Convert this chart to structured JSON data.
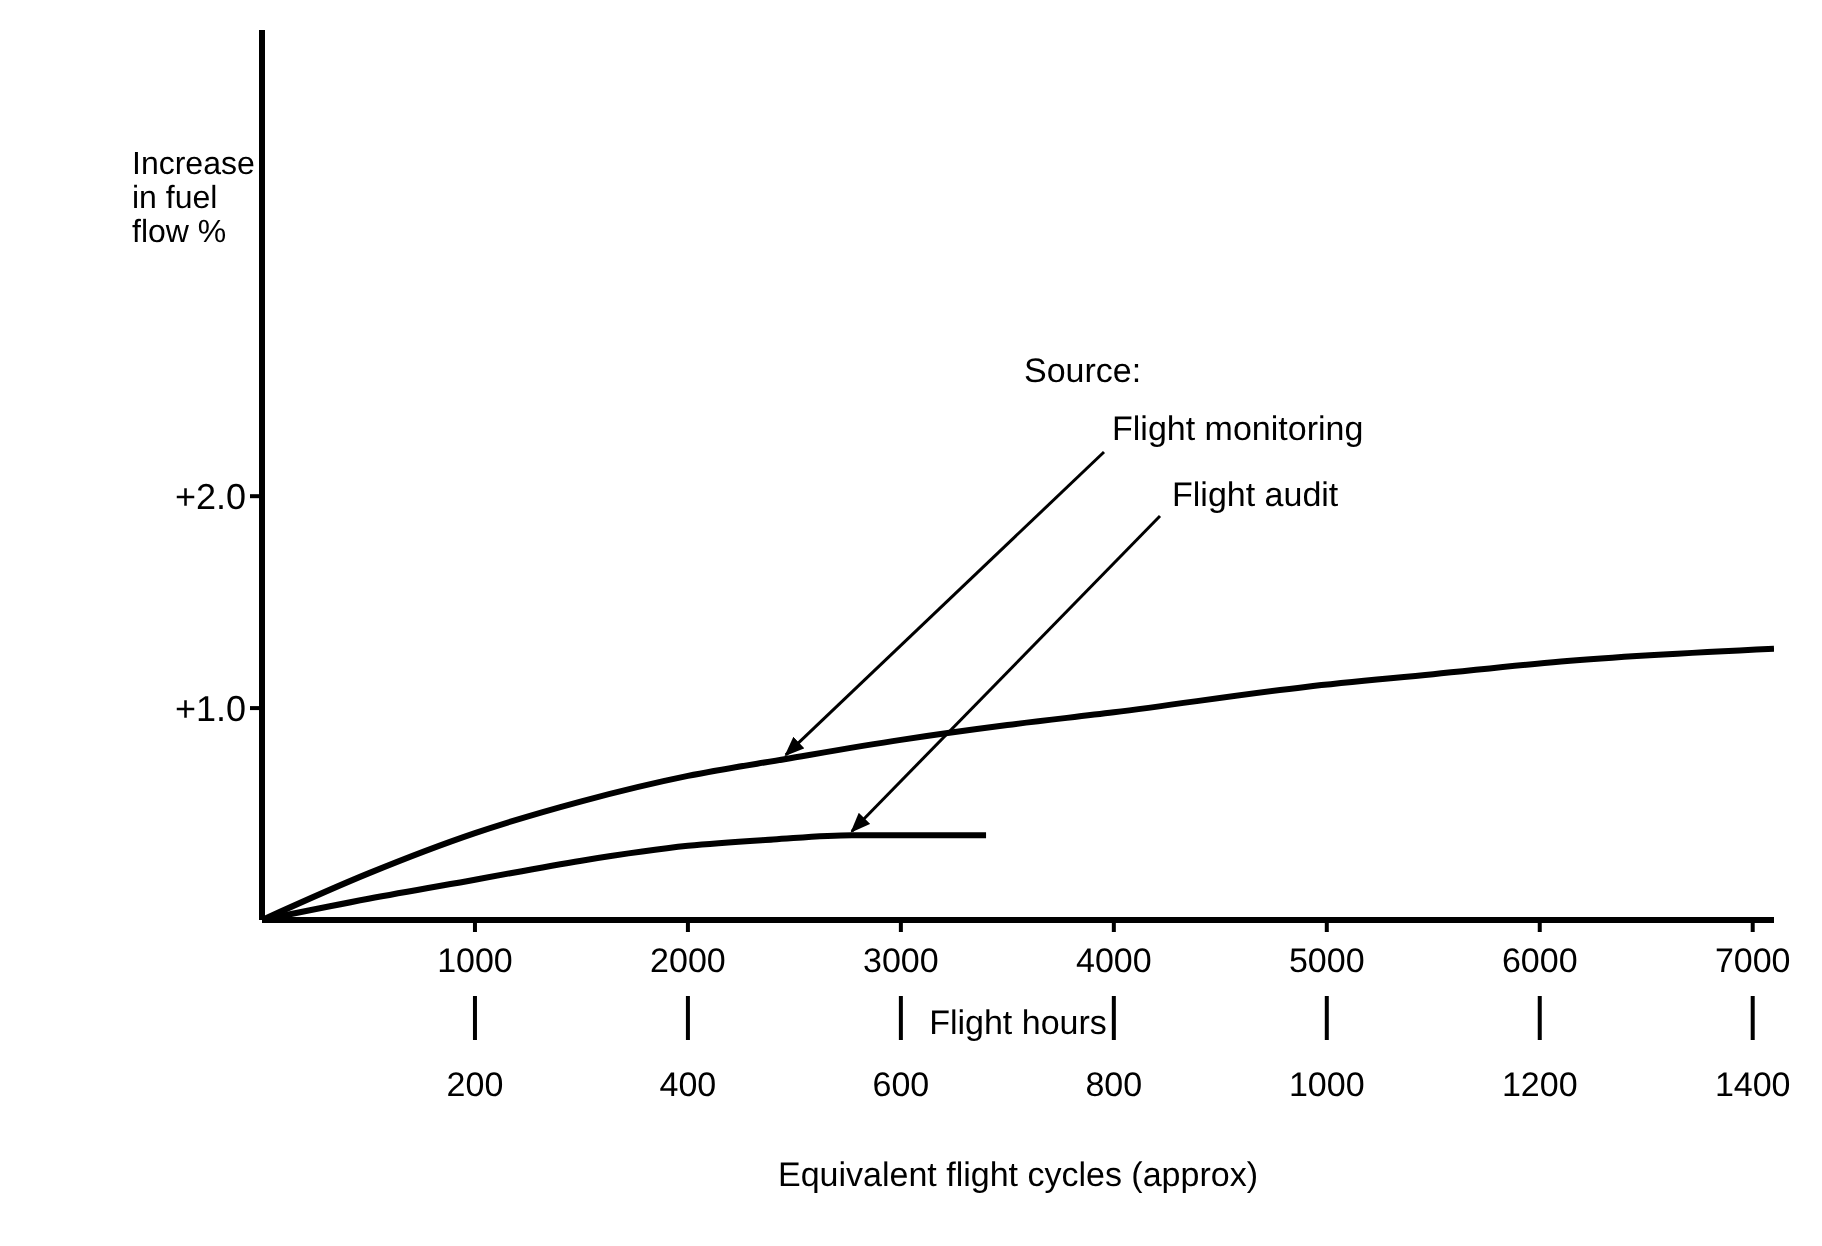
{
  "chart_data": {
    "type": "line",
    "ylabel": "Increase in fuel flow %",
    "xlabel": "Flight hours",
    "x2label": "Equivalent flight cycles (approx)",
    "annotations": [
      "Source:"
    ],
    "series": [
      {
        "name": "Flight monitoring",
        "color": "#000000",
        "x": [
          0,
          500,
          1000,
          1500,
          2000,
          2460,
          3000,
          3500,
          4000,
          4900,
          5500,
          6100,
          7100
        ],
        "values": [
          0,
          0.22,
          0.41,
          0.56,
          0.68,
          0.76,
          0.85,
          0.92,
          0.98,
          1.1,
          1.16,
          1.22,
          1.28
        ]
      },
      {
        "name": "Flight audit",
        "color": "#000000",
        "x": [
          0,
          500,
          1000,
          1500,
          2000,
          2400,
          2770,
          3400
        ],
        "values": [
          0,
          0.1,
          0.19,
          0.28,
          0.35,
          0.38,
          0.4,
          0.4
        ]
      }
    ],
    "xlim": [
      0,
      7100
    ],
    "xticks": [
      1000,
      2000,
      3000,
      4000,
      5000,
      6000,
      7000
    ],
    "x2lim": [
      0,
      1420
    ],
    "x2ticks": [
      200,
      400,
      600,
      800,
      1000,
      1200,
      1400
    ],
    "ylim": [
      0,
      4.2
    ],
    "yticks": [
      {
        "value": 1,
        "label": "+1.0"
      },
      {
        "value": 2,
        "label": "+2.0"
      }
    ],
    "grid": false,
    "legend": false
  }
}
